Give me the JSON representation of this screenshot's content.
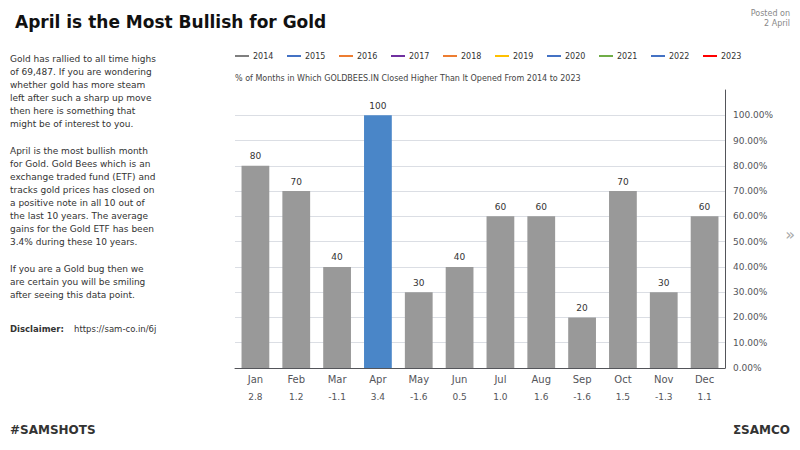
{
  "chart_data": {
    "type": "bar",
    "title": "April is the Most Bullish for Gold",
    "subtitle": "% of Months in Which GOLDBEES.IN Closed Higher Than It Opened From 2014 to 2023",
    "categories": [
      "Jan",
      "Feb",
      "Mar",
      "Apr",
      "May",
      "Jun",
      "Jul",
      "Aug",
      "Sep",
      "Oct",
      "Nov",
      "Dec"
    ],
    "values": [
      80,
      70,
      40,
      100,
      30,
      40,
      60,
      60,
      20,
      70,
      30,
      60
    ],
    "colors": [
      "#999999",
      "#999999",
      "#999999",
      "#4a86c8",
      "#999999",
      "#999999",
      "#999999",
      "#999999",
      "#999999",
      "#999999",
      "#999999",
      "#999999"
    ],
    "data_labels": true,
    "avg_values": [
      2.8,
      1.2,
      -1.1,
      3.4,
      -1.6,
      0.5,
      1.0,
      1.6,
      -1.6,
      1.5,
      -1.3,
      1.1
    ],
    "avg_value_labels": [
      "2.8",
      "1.2",
      "-1.1",
      "3.4",
      "-1.6",
      "0.5",
      "1.0",
      "1.6",
      "-1.6",
      "1.5",
      "-1.3",
      "1.1"
    ],
    "ylim": [
      0,
      110
    ],
    "yticks": [
      {
        "value": 0,
        "label": "0.00%"
      },
      {
        "value": 10,
        "label": "10.00%"
      },
      {
        "value": 20,
        "label": "20.00%"
      },
      {
        "value": 30,
        "label": "30.00%"
      },
      {
        "value": 40,
        "label": "40.00%"
      },
      {
        "value": 50,
        "label": "50.00%"
      },
      {
        "value": 60,
        "label": "60.00%"
      },
      {
        "value": 70,
        "label": "70.00%"
      },
      {
        "value": 80,
        "label": "80.00%"
      },
      {
        "value": 90,
        "label": "90.00%"
      },
      {
        "value": 100,
        "label": "100.00%"
      }
    ],
    "grid": true,
    "year_labels": [
      {
        "label": "2014",
        "color": "#7f7f7f"
      },
      {
        "label": "2015",
        "color": "#4472c4"
      },
      {
        "label": "2016",
        "color": "#ed7d31"
      },
      {
        "label": "2017",
        "color": "#7030a0"
      },
      {
        "label": "2018",
        "color": "#ed7d31"
      },
      {
        "label": "2019",
        "color": "#ffc000"
      },
      {
        "label": "2020",
        "color": "#4472c4"
      },
      {
        "label": "2021",
        "color": "#70ad47"
      },
      {
        "label": "2022",
        "color": "#4472c4"
      },
      {
        "label": "2023",
        "color": "#ff0000"
      }
    ],
    "annotations": [
      "Posted on\n2 April",
      "Gold has rallied to all time highs\nof 69,487. If you are wondering\nwhether gold has more steam\nleft after such a sharp up move\nthen here is something that\nmight be of interest to you.",
      "April is the most bullish month\nfor Gold. Gold Bees which is an\nexchange traded fund (ETF) and\ntracks gold prices has closed on\na positive note in all 10 out of\nthe last 10 years. The average\ngains for the Gold ETF has been\n3.4% during these 10 years.",
      "If you are a Gold bug then we\nare certain you will be smiling\nafter seeing this data point.",
      "Disclaimer: ",
      "https://sam-co.in/6j",
      "#SAMSHOTS",
      "ΣSAMCO",
      "»"
    ]
  }
}
